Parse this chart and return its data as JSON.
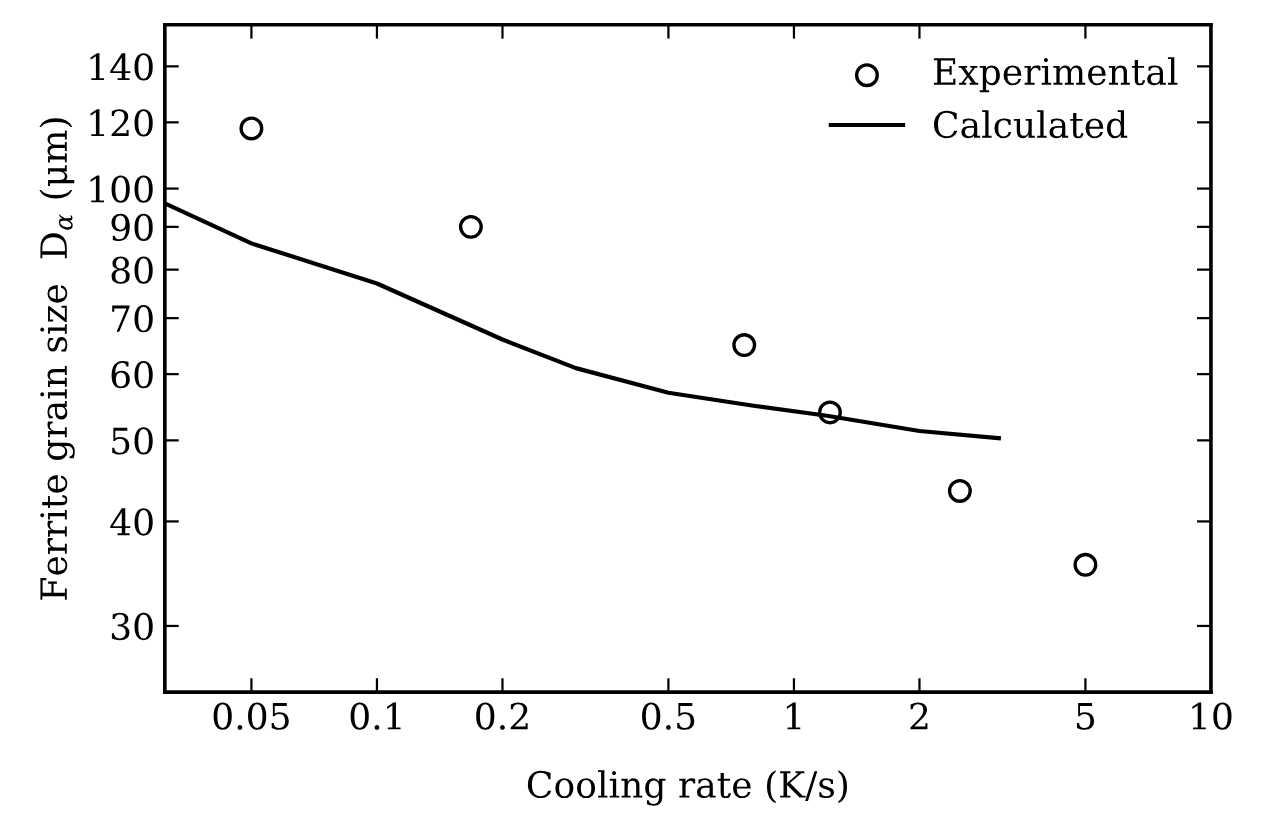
{
  "chart_data": {
    "type": "scatter",
    "xlabel": "Cooling rate (K/s)",
    "ylabel": "Ferrite grain size  D$_{α}$ (μm)",
    "log": "xy",
    "grid": false,
    "legend": "top right",
    "xlim": [
      0.031,
      10
    ],
    "ylim": [
      25,
      157
    ],
    "xticks": [
      0.05,
      0.1,
      0.2,
      0.5,
      1,
      2,
      5,
      10
    ],
    "yticks": [
      30,
      40,
      50,
      60,
      70,
      80,
      90,
      100,
      120,
      140
    ],
    "series": [
      {
        "name": "Experimental",
        "marker": "circle",
        "color": "#000000",
        "x": [
          0.05,
          0.168,
          0.76,
          1.22,
          2.5,
          5
        ],
        "values": [
          118,
          90,
          65,
          54,
          43.5,
          35.5
        ]
      },
      {
        "name": "Calculated",
        "type": "line",
        "line_style": "solid",
        "color": "#000000",
        "x": [
          0.031,
          0.05,
          0.1,
          0.2,
          0.3,
          0.5,
          0.8,
          1.2,
          2,
          3.1
        ],
        "values": [
          96,
          86,
          77,
          66,
          61,
          57,
          55,
          53.5,
          51.3,
          50.3
        ]
      }
    ]
  }
}
